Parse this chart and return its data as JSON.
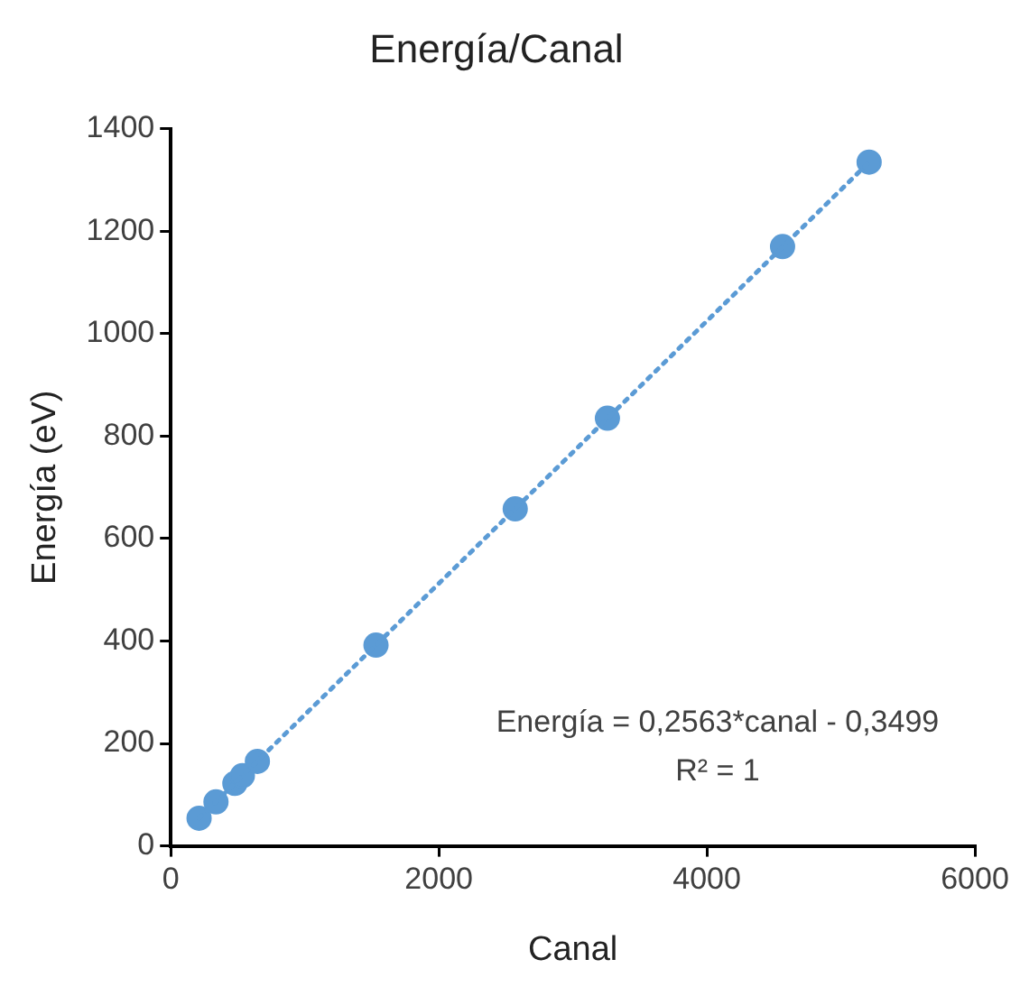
{
  "chart_data": {
    "type": "scatter",
    "title": "Energía/Canal",
    "xlabel": "Canal",
    "ylabel": "Energía (eV)",
    "xlim": [
      0,
      6000
    ],
    "xticks": [
      0,
      2000,
      4000,
      6000
    ],
    "ylim": [
      0,
      1400
    ],
    "yticks": [
      0,
      200,
      400,
      600,
      800,
      1000,
      1200,
      1400
    ],
    "grid": false,
    "legend": false,
    "annotations": [
      "Energía = 0,2563*canal - 0,3499",
      "R² = 1"
    ],
    "series": [
      {
        "color": "#5b9bd5",
        "marker": "circle",
        "x": [
          211,
          337,
          478,
          534,
          646,
          1531,
          2570,
          3258,
          4565,
          5211
        ],
        "values": [
          54,
          86,
          122,
          137,
          165,
          392,
          658,
          835,
          1170,
          1335
        ]
      },
      {
        "type": "line",
        "color": "#5b9bd5",
        "line_style": "dotted",
        "x": [
          211,
          5211
        ],
        "values": [
          54,
          1335
        ]
      }
    ]
  }
}
